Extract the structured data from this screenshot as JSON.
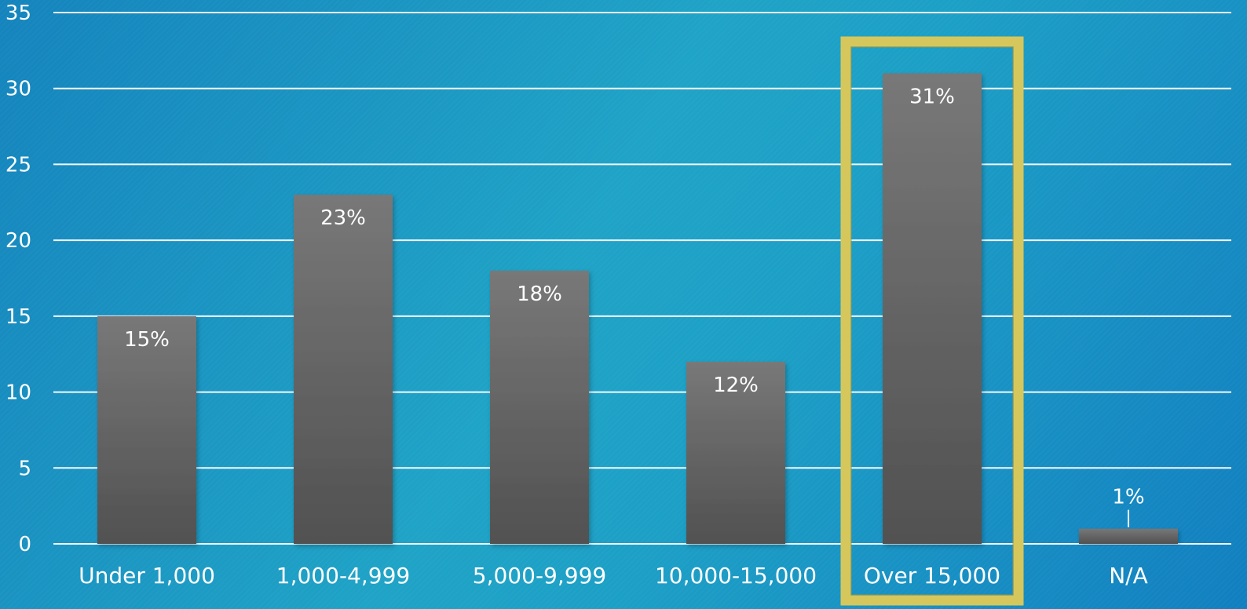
{
  "chart_data": {
    "type": "bar",
    "categories": [
      "Under 1,000",
      "1,000-4,999",
      "5,000-9,999",
      "10,000-15,000",
      "Over 15,000",
      "N/A"
    ],
    "values": [
      15,
      23,
      18,
      12,
      31,
      1
    ],
    "data_labels": [
      "15%",
      "23%",
      "18%",
      "12%",
      "31%",
      "1%"
    ],
    "title": "",
    "xlabel": "",
    "ylabel": "",
    "ylim": [
      0,
      35
    ],
    "yticks": [
      0,
      5,
      10,
      15,
      20,
      25,
      30,
      35
    ],
    "grid": true,
    "highlighted_category": "Over 15,000",
    "colors": {
      "bar_top": "#787878",
      "bar_bottom": "#515151",
      "gridline": "#ffffff",
      "highlight": "#d6c75c",
      "text": "#ffffff"
    }
  }
}
